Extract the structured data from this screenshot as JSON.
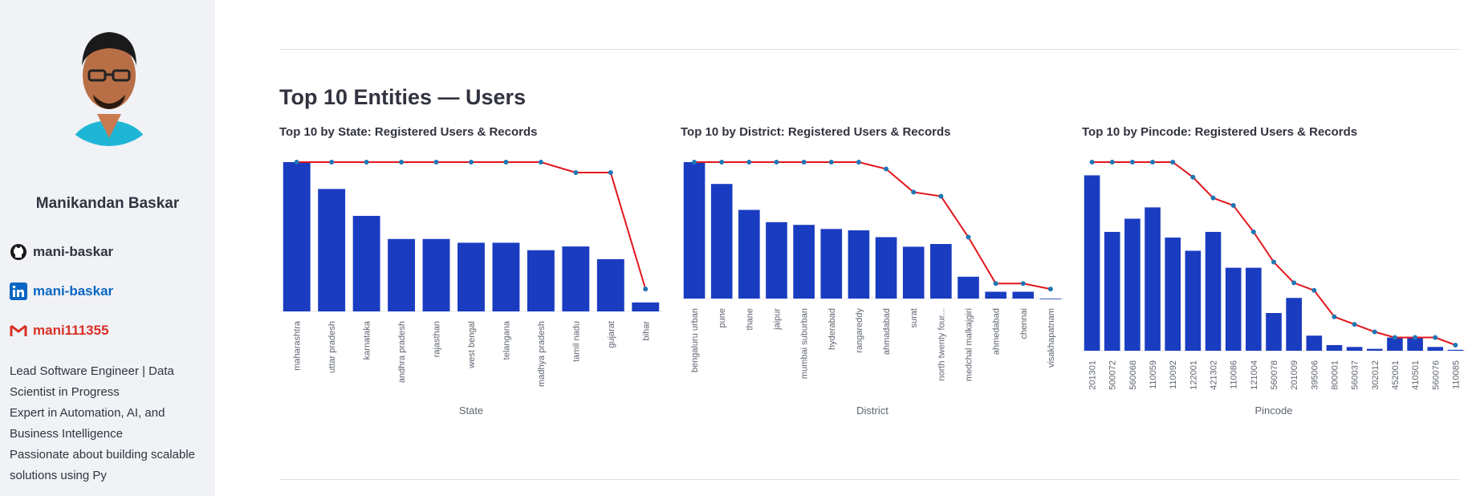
{
  "sidebar": {
    "name": "Manikandan Baskar",
    "links": [
      {
        "icon": "github-icon",
        "label": "mani-baskar",
        "color": "#31333f"
      },
      {
        "icon": "linkedin-icon",
        "label": "mani-baskar",
        "color": "#0a66c2"
      },
      {
        "icon": "gmail-icon",
        "label": "mani111355",
        "color": "#d93025"
      }
    ],
    "bio": [
      "Lead Software Engineer | Data",
      "Scientist in Progress",
      "Expert in Automation, AI, and",
      "Business Intelligence",
      "Passionate about building scalable",
      "solutions using Py"
    ]
  },
  "main": {
    "heading": "Top 10 Entities — Users"
  },
  "colors": {
    "bar": "#1a3cc0",
    "line": "#e0161b",
    "marker": "#1f77b4"
  },
  "chart_data": [
    {
      "type": "bar",
      "title": "Top 10 by State: Registered Users & Records",
      "xlabel": "State",
      "categories": [
        "maharashtra",
        "uttar pradesh",
        "karnataka",
        "andhra pradesh",
        "rajasthan",
        "west bengal",
        "telangana",
        "madhya pradesh",
        "tamil nadu",
        "gujarat",
        "bihar"
      ],
      "series": [
        {
          "kind": "bar",
          "values": [
            100,
            82,
            64,
            48.5,
            48.5,
            46,
            46,
            41,
            43.5,
            35,
            6
          ]
        },
        {
          "kind": "line",
          "values": [
            100,
            100,
            100,
            100,
            100,
            100,
            100,
            100,
            93,
            93,
            15
          ]
        }
      ]
    },
    {
      "type": "bar",
      "title": "Top 10 by District: Registered Users & Records",
      "xlabel": "District",
      "categories": [
        "bengaluru urban",
        "pune",
        "thane",
        "jaipur",
        "mumbai suburban",
        "hyderabad",
        "rangareddy",
        "ahmadabad",
        "surat",
        "north twenty four...",
        "medchal malkajgiri",
        "ahmedabad",
        "chennai",
        "visakhapatnam"
      ],
      "series": [
        {
          "kind": "bar",
          "values": [
            100,
            84,
            65,
            56,
            54,
            51,
            50,
            45,
            38,
            40,
            16,
            5,
            5,
            0
          ]
        },
        {
          "kind": "line",
          "values": [
            100,
            100,
            100,
            100,
            100,
            100,
            100,
            95,
            78,
            75,
            45,
            11,
            11,
            7
          ]
        }
      ]
    },
    {
      "type": "bar",
      "title": "Top 10 by Pincode: Registered Users & Records",
      "xlabel": "Pincode",
      "categories": [
        "201301",
        "500072",
        "560068",
        "110059",
        "110092",
        "122001",
        "421302",
        "110086",
        "121004",
        "560078",
        "201009",
        "395006",
        "800001",
        "560037",
        "302012",
        "452001",
        "410501",
        "560076",
        "110085"
      ],
      "series": [
        {
          "kind": "bar",
          "values": [
            93,
            63,
            70,
            76,
            60,
            53,
            63,
            44,
            44,
            20,
            28,
            8,
            3,
            2,
            1,
            7,
            7,
            2,
            0.5
          ]
        },
        {
          "kind": "line",
          "values": [
            100,
            100,
            100,
            100,
            100,
            92,
            81,
            77,
            63,
            47,
            36,
            32,
            18,
            14,
            10,
            7,
            7,
            7,
            3
          ]
        }
      ]
    }
  ]
}
